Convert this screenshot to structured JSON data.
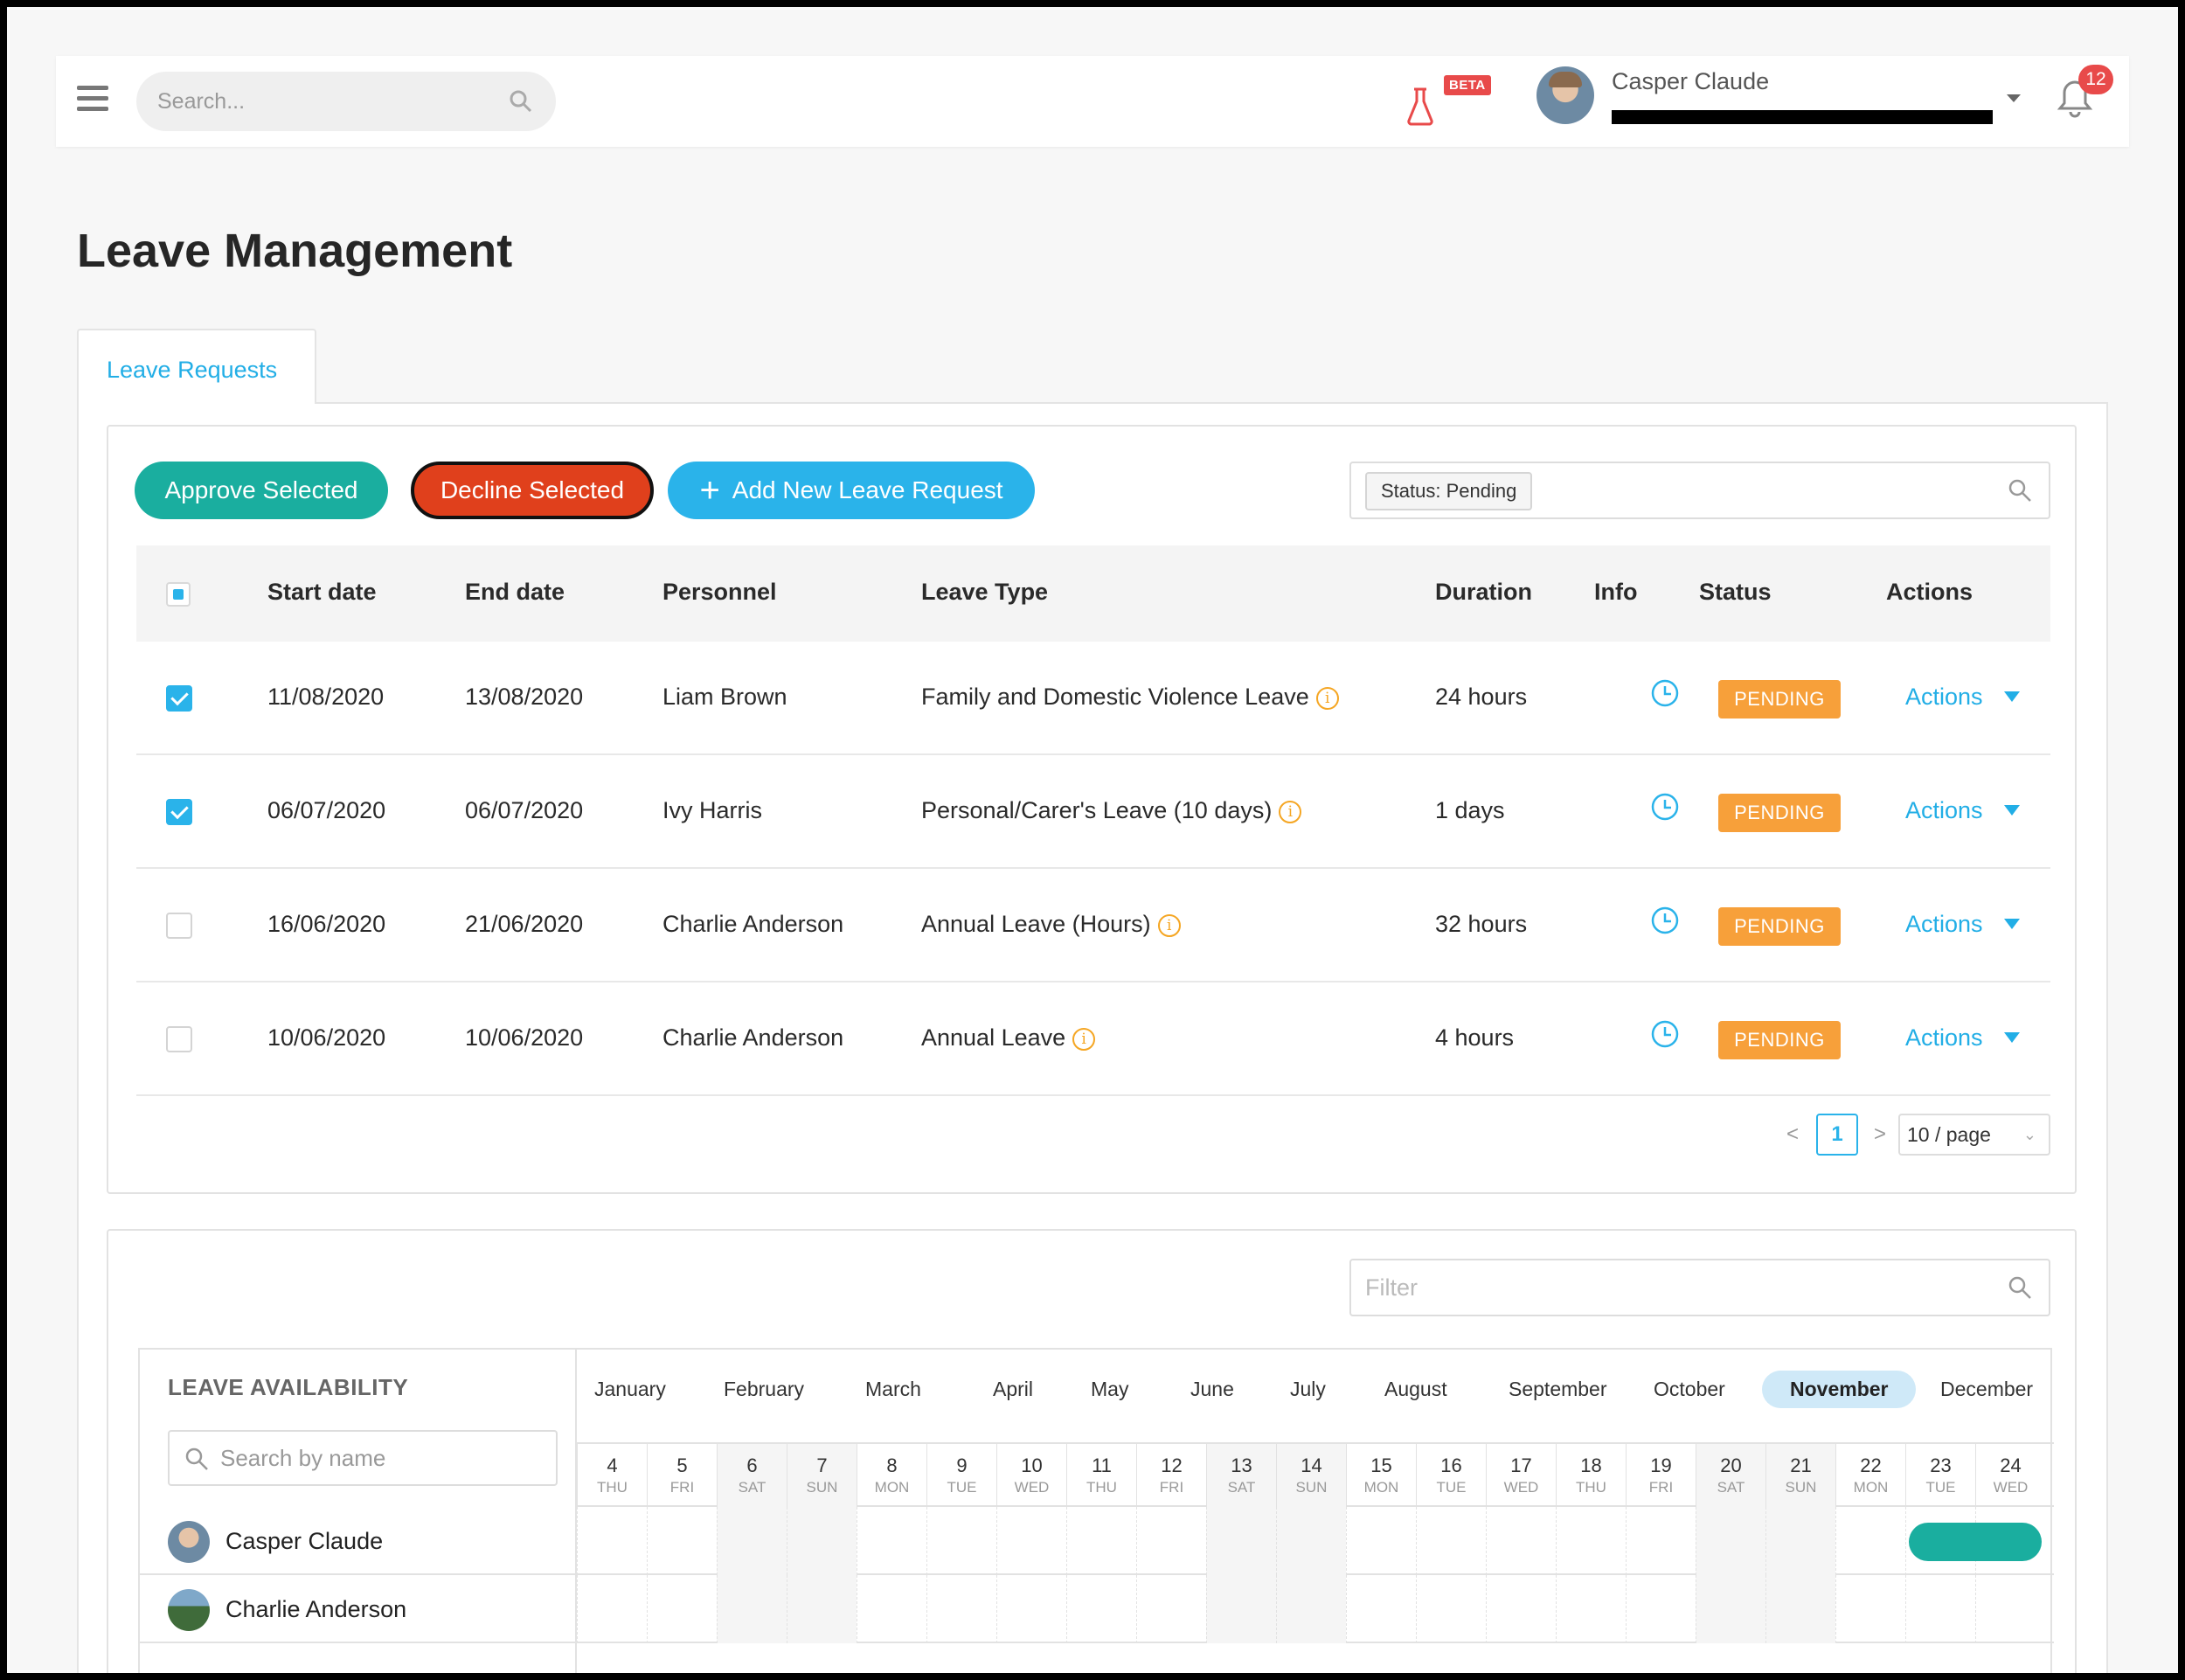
{
  "topbar": {
    "search_placeholder": "Search...",
    "beta_label": "BETA",
    "user_name": "Casper Claude",
    "notification_count": "12"
  },
  "page_title": "Leave Management",
  "tabs": [
    {
      "label": "Leave Requests",
      "active": true
    }
  ],
  "toolbar": {
    "approve_label": "Approve Selected",
    "decline_label": "Decline Selected",
    "add_label": "Add New Leave Request",
    "status_filter_chip": "Status: Pending"
  },
  "table": {
    "columns": [
      "Start date",
      "End date",
      "Personnel",
      "Leave Type",
      "Duration",
      "Info",
      "Status",
      "Actions"
    ],
    "rows": [
      {
        "checked": true,
        "start": "11/08/2020",
        "end": "13/08/2020",
        "personnel": "Liam Brown",
        "leave_type": "Family and Domestic Violence Leave",
        "duration": "24 hours",
        "status": "PENDING",
        "action": "Actions"
      },
      {
        "checked": true,
        "start": "06/07/2020",
        "end": "06/07/2020",
        "personnel": "Ivy Harris",
        "leave_type": "Personal/Carer's Leave (10 days)",
        "duration": "1 days",
        "status": "PENDING",
        "action": "Actions"
      },
      {
        "checked": false,
        "start": "16/06/2020",
        "end": "21/06/2020",
        "personnel": "Charlie Anderson",
        "leave_type": "Annual Leave (Hours)",
        "duration": "32 hours",
        "status": "PENDING",
        "action": "Actions"
      },
      {
        "checked": false,
        "start": "10/06/2020",
        "end": "10/06/2020",
        "personnel": "Charlie Anderson",
        "leave_type": "Annual Leave",
        "duration": "4 hours",
        "status": "PENDING",
        "action": "Actions"
      }
    ]
  },
  "pagination": {
    "prev": "<",
    "current_page": "1",
    "next": ">",
    "page_size": "10 / page"
  },
  "availability": {
    "filter_placeholder": "Filter",
    "title": "LEAVE AVAILABILITY",
    "name_search_placeholder": "Search by name",
    "months": [
      "January",
      "February",
      "March",
      "April",
      "May",
      "June",
      "July",
      "August",
      "September",
      "October",
      "November",
      "December"
    ],
    "active_month": "November",
    "days": [
      {
        "d": "4",
        "w": "THU"
      },
      {
        "d": "5",
        "w": "FRI"
      },
      {
        "d": "6",
        "w": "SAT"
      },
      {
        "d": "7",
        "w": "SUN"
      },
      {
        "d": "8",
        "w": "MON"
      },
      {
        "d": "9",
        "w": "TUE"
      },
      {
        "d": "10",
        "w": "WED"
      },
      {
        "d": "11",
        "w": "THU"
      },
      {
        "d": "12",
        "w": "FRI"
      },
      {
        "d": "13",
        "w": "SAT"
      },
      {
        "d": "14",
        "w": "SUN"
      },
      {
        "d": "15",
        "w": "MON"
      },
      {
        "d": "16",
        "w": "TUE"
      },
      {
        "d": "17",
        "w": "WED"
      },
      {
        "d": "18",
        "w": "THU"
      },
      {
        "d": "19",
        "w": "FRI"
      },
      {
        "d": "20",
        "w": "SAT"
      },
      {
        "d": "21",
        "w": "SUN"
      },
      {
        "d": "22",
        "w": "MON"
      },
      {
        "d": "23",
        "w": "TUE"
      },
      {
        "d": "24",
        "w": "WED"
      }
    ],
    "people": [
      {
        "name": "Casper Claude",
        "leave_days": [
          "23",
          "24"
        ]
      },
      {
        "name": "Charlie Anderson",
        "leave_days": []
      }
    ]
  },
  "colors": {
    "accent_blue": "#2ab3ea",
    "approve_green": "#1aae9f",
    "decline_red": "#e0401c",
    "pending_orange": "#f7a03a",
    "notification_red": "#e84a4a"
  }
}
